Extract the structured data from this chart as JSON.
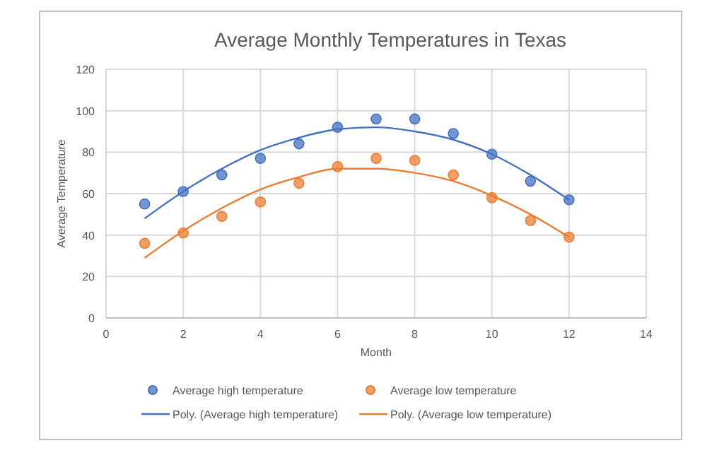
{
  "chart_data": {
    "type": "scatter",
    "title": "Average Monthly Temperatures in Texas",
    "xlabel": "Month",
    "ylabel": "Average Temperature",
    "x": [
      1,
      2,
      3,
      4,
      5,
      6,
      7,
      8,
      9,
      10,
      11,
      12
    ],
    "series": [
      {
        "name": "Average high temperature",
        "marker": "circle",
        "color": "#4472c4",
        "values": [
          55,
          61,
          69,
          77,
          84,
          92,
          96,
          96,
          89,
          79,
          66,
          57
        ]
      },
      {
        "name": "Average low temperature",
        "marker": "circle",
        "color": "#ed7d31",
        "values": [
          36,
          41,
          49,
          56,
          65,
          73,
          77,
          76,
          69,
          58,
          47,
          39
        ]
      },
      {
        "name": "Poly. (Average high temperature)",
        "type": "line",
        "color": "#4472c4",
        "values": [
          48,
          61,
          72,
          81,
          87,
          91,
          92,
          90,
          86,
          79,
          69,
          57
        ]
      },
      {
        "name": "Poly. (Average low temperature)",
        "type": "line",
        "color": "#ed7d31",
        "values": [
          29,
          42,
          53,
          62,
          68,
          72,
          72,
          70,
          66,
          59,
          50,
          39
        ]
      }
    ],
    "xlim": [
      0,
      14
    ],
    "xticks": [
      0,
      2,
      4,
      6,
      8,
      10,
      12,
      14
    ],
    "ylim": [
      0,
      120
    ],
    "yticks": [
      0,
      20,
      40,
      60,
      80,
      100,
      120
    ],
    "grid": true,
    "legend": "bottom",
    "line_style": "solid"
  }
}
